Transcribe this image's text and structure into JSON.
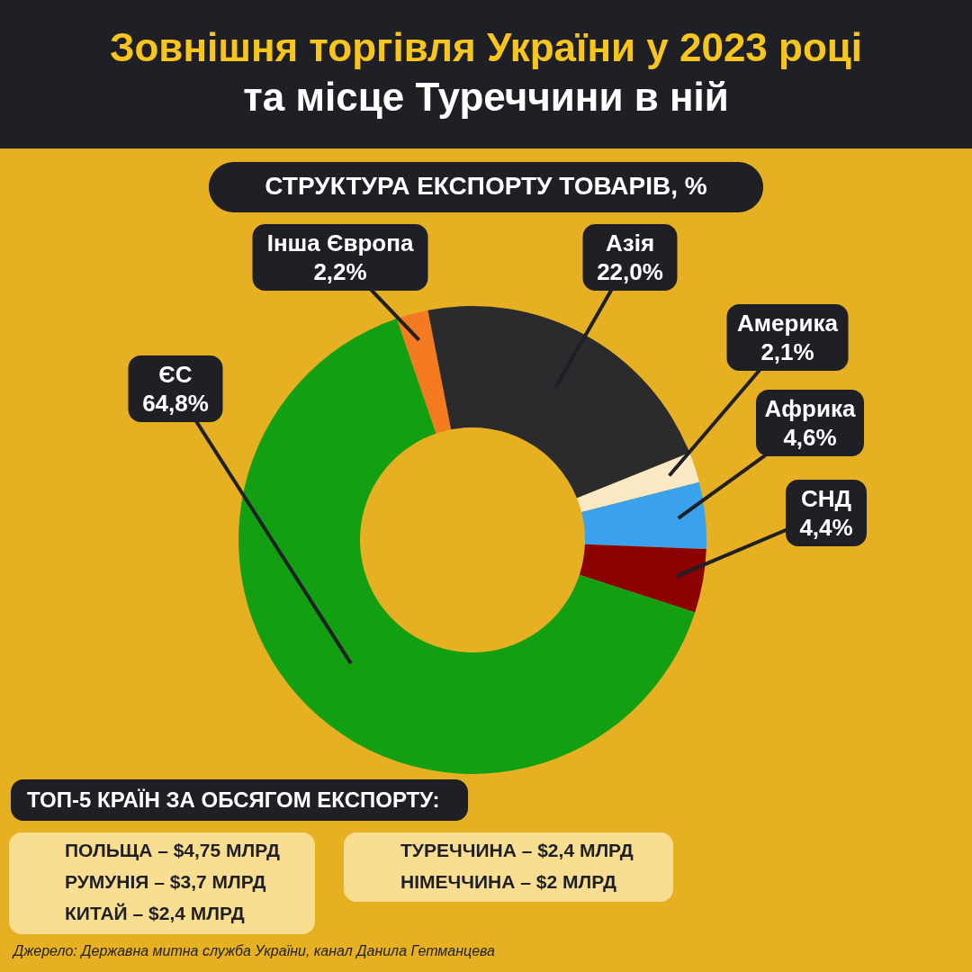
{
  "chart_data": {
    "type": "donut",
    "title": "Зовнішня торгівля України у 2023 році\nта місце Туреччини в ній",
    "subtitle": "СТРУКТУРА ЕКСПОРТУ ТОВАРІВ, %",
    "categories": [
      "Інша Європа",
      "Азія",
      "Америка",
      "Африка",
      "СНД",
      "ЄС"
    ],
    "values": [
      2.2,
      22.0,
      2.1,
      4.6,
      4.4,
      64.8
    ],
    "value_labels": [
      "2,2%",
      "22,0%",
      "2,1%",
      "4,6%",
      "4,4%",
      "64,8%"
    ],
    "colors": [
      "#f47b20",
      "#2b2b2e",
      "#fbe8c4",
      "#3aa2ec",
      "#8b0000",
      "#12a012"
    ],
    "annotations": [
      "ТОП-5 КРАЇН ЗА ОБСЯГОМ ЕКСПОРТУ:",
      "ПОЛЬЩА – $4,75 МЛРД",
      "РУМУНІЯ – $3,7 МЛРД",
      "КИТАЙ – $2,4 МЛРД",
      "ТУРЕЧЧИНА – $2,4 МЛРД",
      "НІМЕЧЧИНА – $2 МЛРД",
      "Джерело: Державна митна служба України, канал Данила Гетманцева"
    ]
  }
}
